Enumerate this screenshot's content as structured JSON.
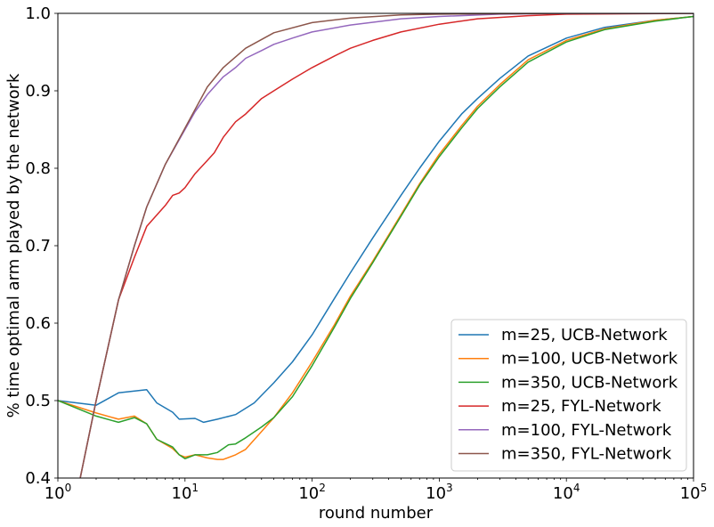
{
  "chart_data": {
    "type": "line",
    "title": "",
    "xlabel": "round number",
    "ylabel": "% time optimal arm played by the network",
    "xscale": "log",
    "xlim": [
      1,
      100000
    ],
    "ylim": [
      0.4,
      1.0
    ],
    "grid": false,
    "legend_position": "lower-right",
    "xtick_labels": [
      {
        "value": 1,
        "base": "10",
        "exp": "0"
      },
      {
        "value": 10,
        "base": "10",
        "exp": "1"
      },
      {
        "value": 100,
        "base": "10",
        "exp": "2"
      },
      {
        "value": 1000,
        "base": "10",
        "exp": "3"
      },
      {
        "value": 10000,
        "base": "10",
        "exp": "4"
      },
      {
        "value": 100000,
        "base": "10",
        "exp": "5"
      }
    ],
    "yticks": [
      0.4,
      0.5,
      0.6,
      0.7,
      0.8,
      0.9,
      1.0
    ],
    "ytick_labels": [
      "0.4",
      "0.5",
      "0.6",
      "0.7",
      "0.8",
      "0.9",
      "1.0"
    ],
    "series": [
      {
        "name": "m=25, UCB-Network",
        "color": "#1f77b4",
        "points": [
          [
            1,
            0.5
          ],
          [
            2,
            0.494
          ],
          [
            3,
            0.51
          ],
          [
            5,
            0.514
          ],
          [
            6,
            0.497
          ],
          [
            8,
            0.485
          ],
          [
            9,
            0.476
          ],
          [
            12,
            0.477
          ],
          [
            14,
            0.472
          ],
          [
            18,
            0.476
          ],
          [
            25,
            0.482
          ],
          [
            35,
            0.497
          ],
          [
            50,
            0.523
          ],
          [
            70,
            0.55
          ],
          [
            100,
            0.585
          ],
          [
            150,
            0.632
          ],
          [
            200,
            0.665
          ],
          [
            300,
            0.71
          ],
          [
            500,
            0.765
          ],
          [
            700,
            0.8
          ],
          [
            1000,
            0.835
          ],
          [
            1500,
            0.87
          ],
          [
            2000,
            0.89
          ],
          [
            3000,
            0.916
          ],
          [
            5000,
            0.945
          ],
          [
            10000,
            0.968
          ],
          [
            20000,
            0.982
          ],
          [
            50000,
            0.991
          ],
          [
            100000,
            0.996
          ]
        ]
      },
      {
        "name": "m=100, UCB-Network",
        "color": "#ff7f0e",
        "points": [
          [
            1,
            0.5
          ],
          [
            2,
            0.484
          ],
          [
            3,
            0.476
          ],
          [
            4,
            0.48
          ],
          [
            5,
            0.47
          ],
          [
            6,
            0.45
          ],
          [
            8,
            0.438
          ],
          [
            9,
            0.43
          ],
          [
            10,
            0.427
          ],
          [
            12,
            0.43
          ],
          [
            15,
            0.426
          ],
          [
            18,
            0.424
          ],
          [
            20,
            0.424
          ],
          [
            25,
            0.43
          ],
          [
            30,
            0.437
          ],
          [
            40,
            0.46
          ],
          [
            50,
            0.478
          ],
          [
            70,
            0.51
          ],
          [
            100,
            0.55
          ],
          [
            150,
            0.598
          ],
          [
            200,
            0.635
          ],
          [
            300,
            0.68
          ],
          [
            500,
            0.74
          ],
          [
            700,
            0.78
          ],
          [
            1000,
            0.818
          ],
          [
            1500,
            0.855
          ],
          [
            2000,
            0.88
          ],
          [
            3000,
            0.908
          ],
          [
            5000,
            0.94
          ],
          [
            10000,
            0.965
          ],
          [
            20000,
            0.98
          ],
          [
            50000,
            0.991
          ],
          [
            100000,
            0.996
          ]
        ]
      },
      {
        "name": "m=350, UCB-Network",
        "color": "#2ca02c",
        "points": [
          [
            1,
            0.5
          ],
          [
            2,
            0.48
          ],
          [
            3,
            0.472
          ],
          [
            4,
            0.478
          ],
          [
            5,
            0.47
          ],
          [
            6,
            0.45
          ],
          [
            8,
            0.44
          ],
          [
            9,
            0.43
          ],
          [
            10,
            0.425
          ],
          [
            12,
            0.43
          ],
          [
            15,
            0.43
          ],
          [
            18,
            0.433
          ],
          [
            22,
            0.443
          ],
          [
            25,
            0.444
          ],
          [
            30,
            0.452
          ],
          [
            40,
            0.466
          ],
          [
            50,
            0.478
          ],
          [
            70,
            0.505
          ],
          [
            100,
            0.545
          ],
          [
            150,
            0.595
          ],
          [
            200,
            0.632
          ],
          [
            300,
            0.678
          ],
          [
            500,
            0.738
          ],
          [
            700,
            0.778
          ],
          [
            1000,
            0.815
          ],
          [
            1500,
            0.852
          ],
          [
            2000,
            0.877
          ],
          [
            3000,
            0.905
          ],
          [
            5000,
            0.937
          ],
          [
            10000,
            0.963
          ],
          [
            20000,
            0.979
          ],
          [
            50000,
            0.99
          ],
          [
            100000,
            0.996
          ]
        ]
      },
      {
        "name": "m=25, FYL-Network",
        "color": "#d62728",
        "points": [
          [
            1.5,
            0.4
          ],
          [
            2,
            0.5
          ],
          [
            3,
            0.63
          ],
          [
            4,
            0.685
          ],
          [
            5,
            0.725
          ],
          [
            7,
            0.752
          ],
          [
            8,
            0.765
          ],
          [
            9,
            0.768
          ],
          [
            10,
            0.775
          ],
          [
            12,
            0.793
          ],
          [
            15,
            0.81
          ],
          [
            17,
            0.82
          ],
          [
            20,
            0.84
          ],
          [
            25,
            0.86
          ],
          [
            30,
            0.87
          ],
          [
            40,
            0.89
          ],
          [
            50,
            0.9
          ],
          [
            70,
            0.915
          ],
          [
            100,
            0.93
          ],
          [
            150,
            0.945
          ],
          [
            200,
            0.955
          ],
          [
            300,
            0.965
          ],
          [
            500,
            0.976
          ],
          [
            1000,
            0.986
          ],
          [
            2000,
            0.993
          ],
          [
            5000,
            0.997
          ],
          [
            10000,
            0.999
          ],
          [
            100000,
            1.0
          ]
        ]
      },
      {
        "name": "m=100, FYL-Network",
        "color": "#9467bd",
        "points": [
          [
            1.5,
            0.4
          ],
          [
            2,
            0.5
          ],
          [
            3,
            0.63
          ],
          [
            4,
            0.7
          ],
          [
            5,
            0.75
          ],
          [
            7,
            0.805
          ],
          [
            10,
            0.85
          ],
          [
            12,
            0.873
          ],
          [
            15,
            0.895
          ],
          [
            20,
            0.918
          ],
          [
            25,
            0.93
          ],
          [
            30,
            0.942
          ],
          [
            40,
            0.952
          ],
          [
            50,
            0.96
          ],
          [
            70,
            0.968
          ],
          [
            100,
            0.976
          ],
          [
            200,
            0.985
          ],
          [
            500,
            0.993
          ],
          [
            1000,
            0.996
          ],
          [
            3000,
            0.999
          ],
          [
            10000,
            1.0
          ],
          [
            100000,
            1.0
          ]
        ]
      },
      {
        "name": "m=350, FYL-Network",
        "color": "#8c564b",
        "points": [
          [
            1.5,
            0.4
          ],
          [
            2,
            0.5
          ],
          [
            3,
            0.63
          ],
          [
            4,
            0.7
          ],
          [
            5,
            0.75
          ],
          [
            7,
            0.805
          ],
          [
            10,
            0.852
          ],
          [
            15,
            0.905
          ],
          [
            20,
            0.93
          ],
          [
            30,
            0.955
          ],
          [
            50,
            0.975
          ],
          [
            100,
            0.988
          ],
          [
            200,
            0.994
          ],
          [
            500,
            0.998
          ],
          [
            1000,
            0.999
          ],
          [
            10000,
            1.0
          ],
          [
            100000,
            1.0
          ]
        ]
      }
    ]
  }
}
